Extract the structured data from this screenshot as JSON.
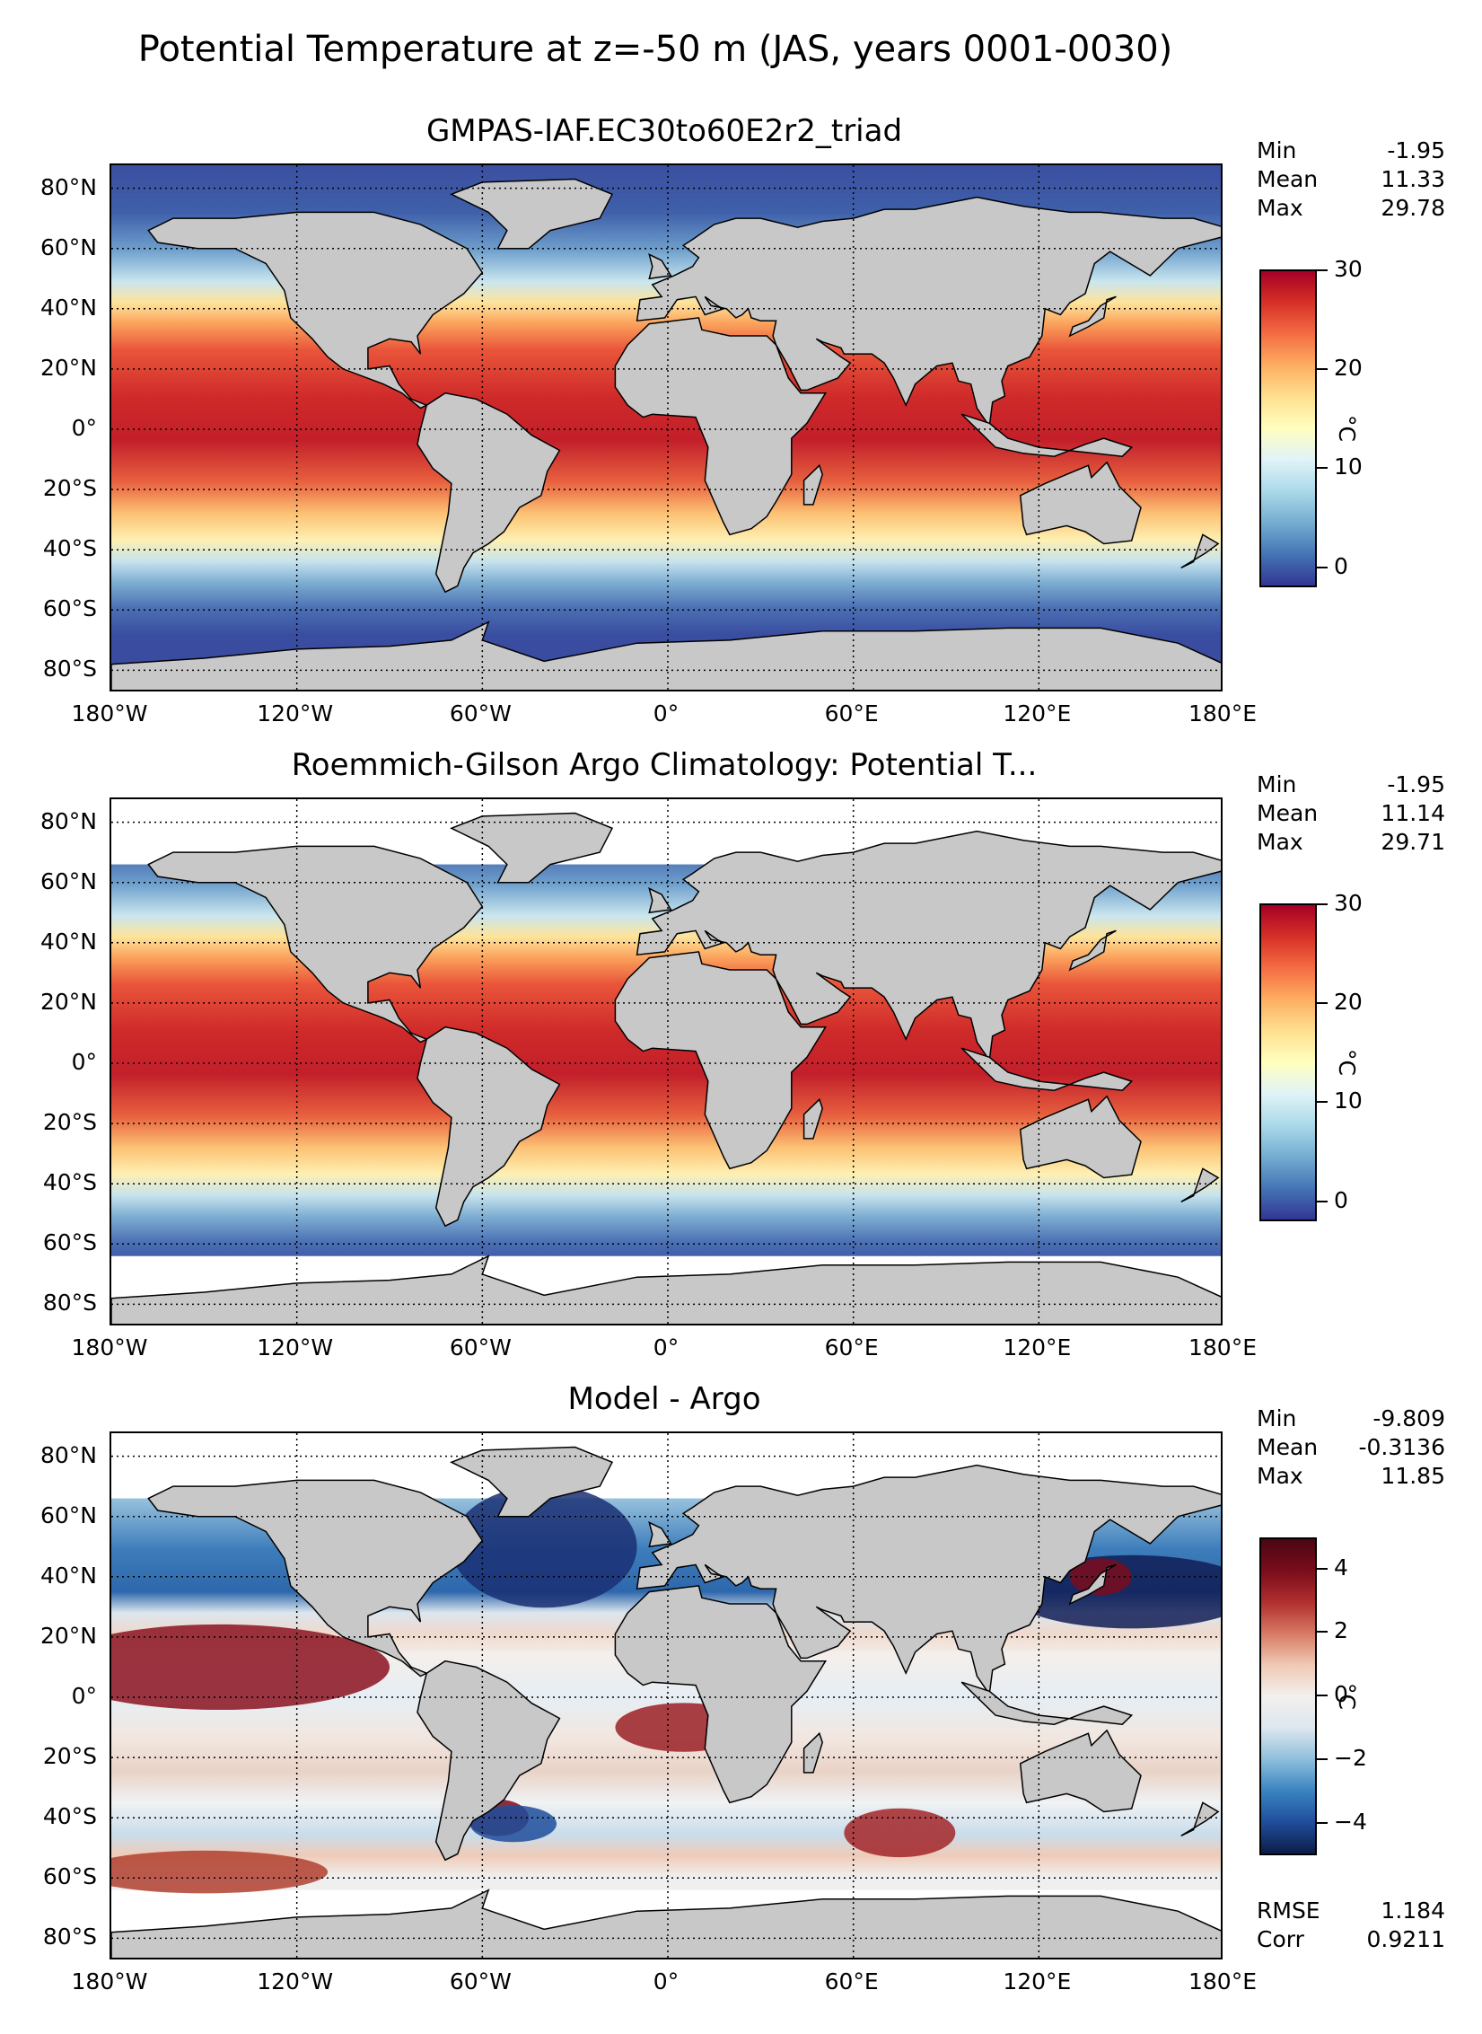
{
  "figure": {
    "title": "Potential Temperature at z=-50 m (JAS, years 0001-0030)"
  },
  "axes": {
    "lat_ticks": [
      "80°N",
      "60°N",
      "40°N",
      "20°N",
      "0°",
      "20°S",
      "40°S",
      "60°S",
      "80°S"
    ],
    "lon_ticks": [
      "180°W",
      "120°W",
      "60°W",
      "0°",
      "60°E",
      "120°E",
      "180°E"
    ]
  },
  "panels": [
    {
      "title": "GMPAS-IAF.EC30to60E2r2_triad",
      "stats": [
        {
          "label": "Min",
          "value": "-1.95"
        },
        {
          "label": "Mean",
          "value": "11.33"
        },
        {
          "label": "Max",
          "value": "29.78"
        }
      ],
      "colorbar": {
        "ticks": [
          "30",
          "20",
          "10",
          "0"
        ],
        "unit": "°C",
        "range": [
          -2,
          30
        ],
        "colormap": [
          "#313695",
          "#4575b4",
          "#74add1",
          "#abd9e9",
          "#e0f3f8",
          "#ffffbf",
          "#fee090",
          "#fdae61",
          "#f46d43",
          "#d73027",
          "#a50026"
        ]
      }
    },
    {
      "title": "Roemmich-Gilson Argo Climatology: Potential T...",
      "stats": [
        {
          "label": "Min",
          "value": "-1.95"
        },
        {
          "label": "Mean",
          "value": "11.14"
        },
        {
          "label": "Max",
          "value": "29.71"
        }
      ],
      "colorbar": {
        "ticks": [
          "30",
          "20",
          "10",
          "0"
        ],
        "unit": "°C",
        "range": [
          -2,
          30
        ],
        "colormap": [
          "#313695",
          "#4575b4",
          "#74add1",
          "#abd9e9",
          "#e0f3f8",
          "#ffffbf",
          "#fee090",
          "#fdae61",
          "#f46d43",
          "#d73027",
          "#a50026"
        ]
      }
    },
    {
      "title": "Model - Argo",
      "stats": [
        {
          "label": "Min",
          "value": "-9.809"
        },
        {
          "label": "Mean",
          "value": "-0.3136"
        },
        {
          "label": "Max",
          "value": "11.85"
        }
      ],
      "colorbar": {
        "ticks": [
          "4",
          "2",
          "0",
          "−2",
          "−4"
        ],
        "unit": "°C",
        "range": [
          -5,
          5
        ],
        "colormap": [
          "#0c1d48",
          "#1f4e9b",
          "#3a84c0",
          "#8fbfdc",
          "#dde7ee",
          "#f2f0ee",
          "#f0c9b4",
          "#d77a63",
          "#b02e2e",
          "#7a0c1c",
          "#4a0712"
        ]
      },
      "bottom_stats": [
        {
          "label": "RMSE",
          "value": "1.184"
        },
        {
          "label": "Corr",
          "value": "0.9211"
        }
      ]
    }
  ],
  "colors": {
    "land": "#c8c8c8",
    "missing": "#ffffff"
  }
}
